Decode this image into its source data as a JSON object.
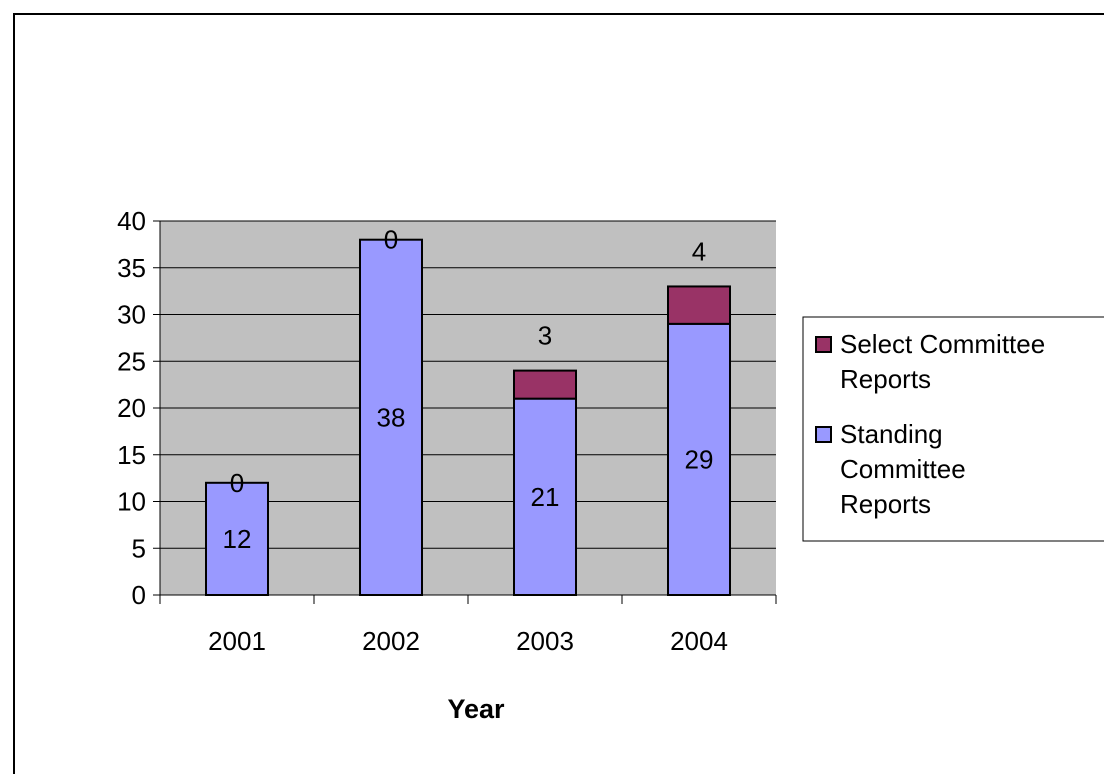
{
  "chart_data": {
    "type": "bar",
    "stacked": true,
    "title": "",
    "xlabel": "Year",
    "ylabel": "",
    "categories": [
      "2001",
      "2002",
      "2003",
      "2004"
    ],
    "ylim": [
      0,
      40
    ],
    "yticks": [
      0,
      5,
      10,
      15,
      20,
      25,
      30,
      35,
      40
    ],
    "ytick_labels": [
      "0",
      "5",
      "10",
      "15",
      "20",
      "25",
      "30",
      "35",
      "40"
    ],
    "grid": true,
    "legend_position": "right",
    "series": [
      {
        "name": "Standing Committee Reports",
        "legend_lines": [
          "Standing",
          "Committee",
          "Reports"
        ],
        "values": [
          12,
          38,
          21,
          29
        ],
        "data_labels": [
          "12",
          "38",
          "21",
          "29"
        ],
        "color": "#9999ff"
      },
      {
        "name": "Select Committee Reports",
        "legend_lines": [
          "Select Committee",
          "Reports"
        ],
        "values": [
          0,
          0,
          3,
          4
        ],
        "data_labels": [
          "0",
          "0",
          "3",
          "4"
        ],
        "color": "#993366"
      }
    ],
    "plot_background": "#c0c0c0"
  }
}
